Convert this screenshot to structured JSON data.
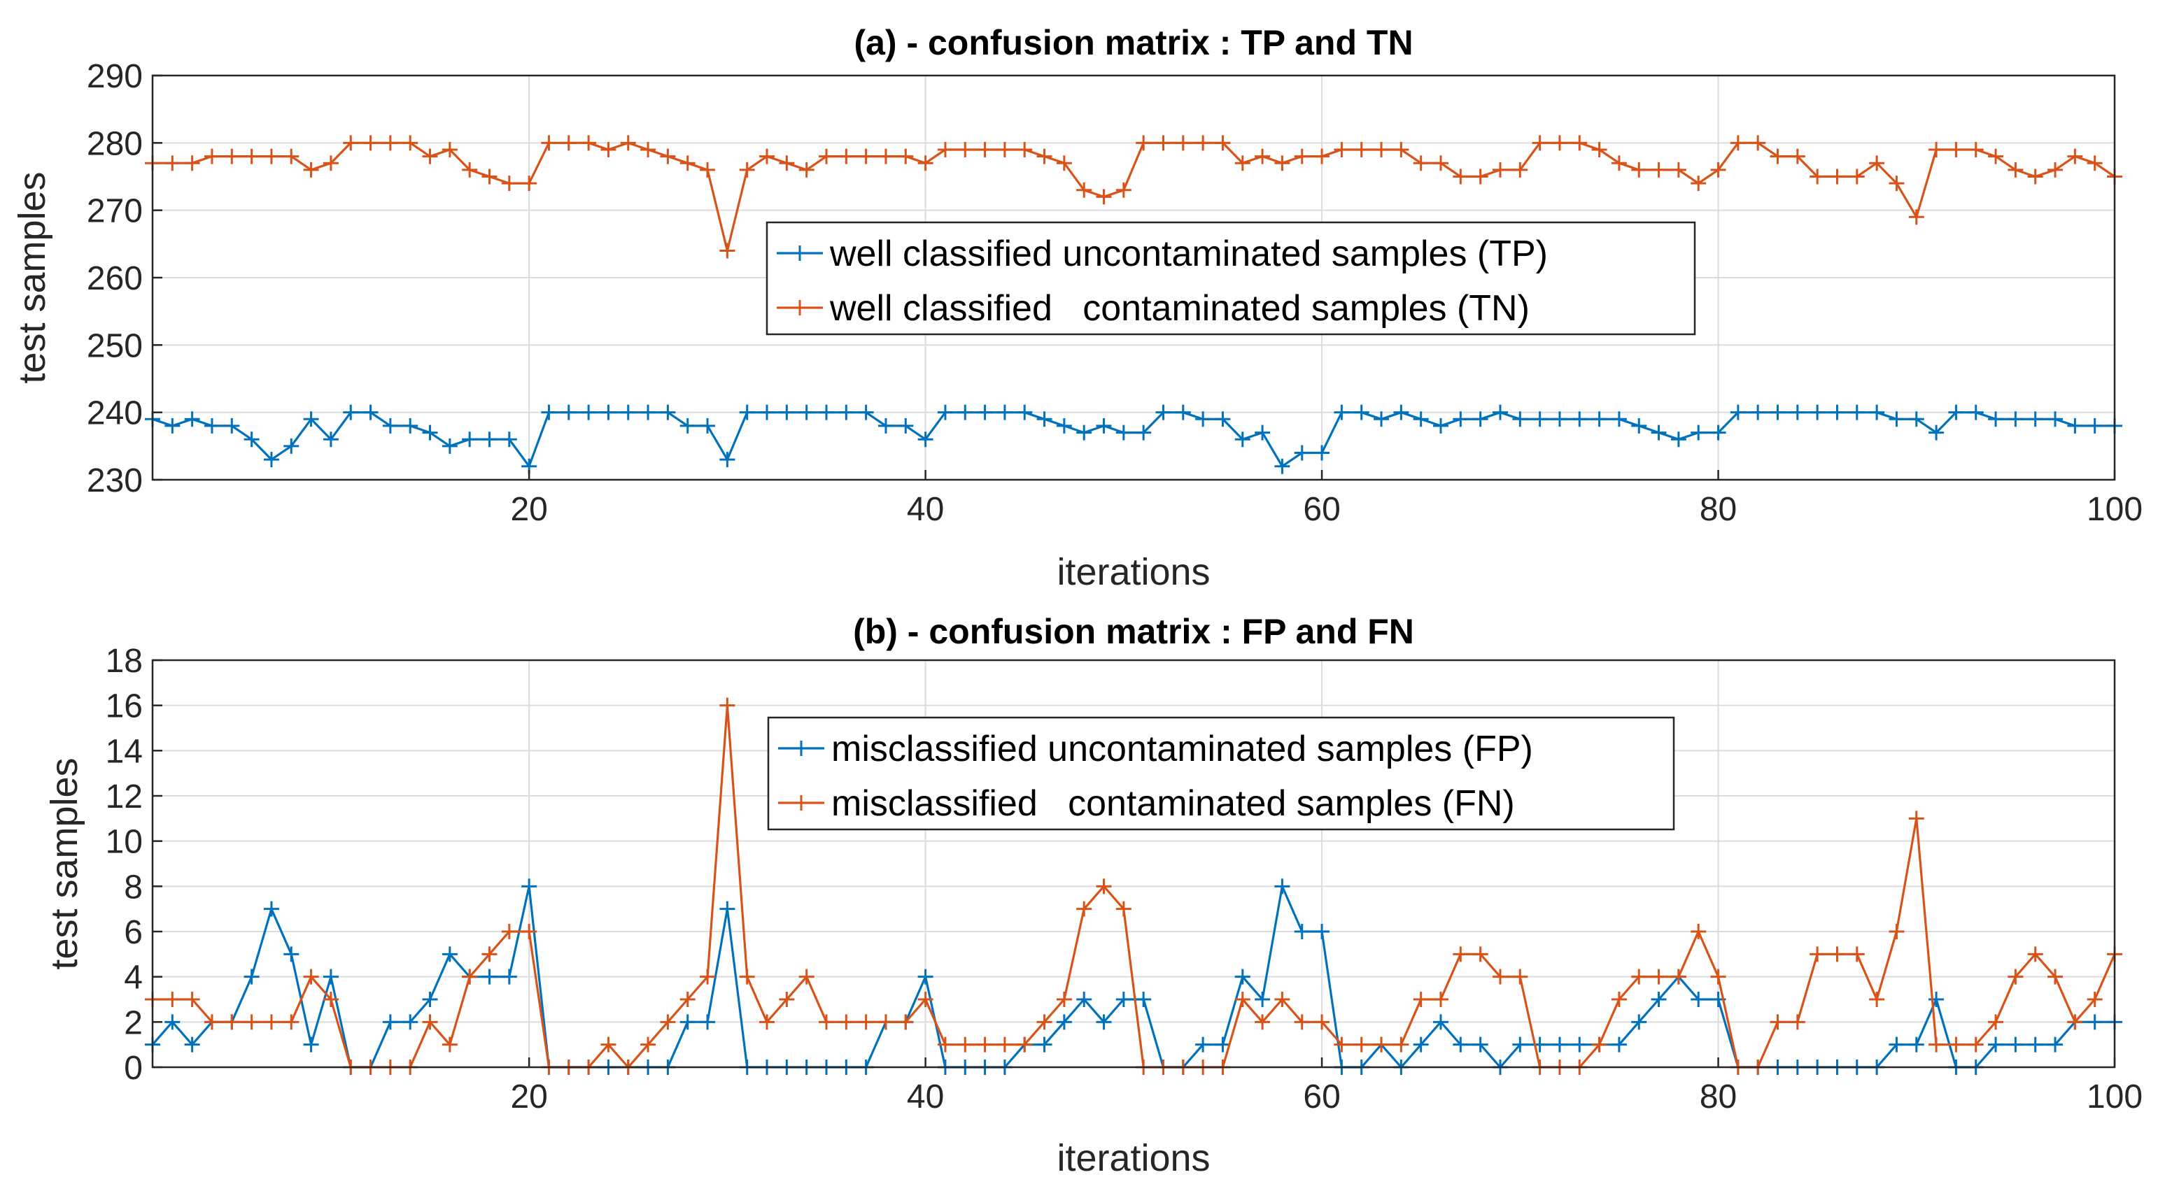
{
  "chart_data": [
    {
      "id": "a",
      "type": "line",
      "title": "(a) - confusion matrix : TP and TN",
      "xlabel": "iterations",
      "ylabel": "test samples",
      "xlim": [
        1,
        100
      ],
      "ylim": [
        230,
        290
      ],
      "xticks": [
        20,
        40,
        60,
        80,
        100
      ],
      "yticks": [
        230,
        240,
        250,
        260,
        270,
        280,
        290
      ],
      "grid": true,
      "legend_position": "center",
      "x": [
        1,
        2,
        3,
        4,
        5,
        6,
        7,
        8,
        9,
        10,
        11,
        12,
        13,
        14,
        15,
        16,
        17,
        18,
        19,
        20,
        21,
        22,
        23,
        24,
        25,
        26,
        27,
        28,
        29,
        30,
        31,
        32,
        33,
        34,
        35,
        36,
        37,
        38,
        39,
        40,
        41,
        42,
        43,
        44,
        45,
        46,
        47,
        48,
        49,
        50,
        51,
        52,
        53,
        54,
        55,
        56,
        57,
        58,
        59,
        60,
        61,
        62,
        63,
        64,
        65,
        66,
        67,
        68,
        69,
        70,
        71,
        72,
        73,
        74,
        75,
        76,
        77,
        78,
        79,
        80,
        81,
        82,
        83,
        84,
        85,
        86,
        87,
        88,
        89,
        90,
        91,
        92,
        93,
        94,
        95,
        96,
        97,
        98,
        99,
        100
      ],
      "series": [
        {
          "name": "well classified uncontaminated samples (TP)",
          "color": "#0072BD",
          "values": [
            239,
            238,
            239,
            238,
            238,
            236,
            233,
            235,
            239,
            236,
            240,
            240,
            238,
            238,
            237,
            235,
            236,
            236,
            236,
            232,
            240,
            240,
            240,
            240,
            240,
            240,
            240,
            238,
            238,
            233,
            240,
            240,
            240,
            240,
            240,
            240,
            240,
            238,
            238,
            236,
            240,
            240,
            240,
            240,
            240,
            239,
            238,
            237,
            238,
            237,
            237,
            240,
            240,
            239,
            239,
            236,
            237,
            232,
            234,
            234,
            240,
            240,
            239,
            240,
            239,
            238,
            239,
            239,
            240,
            239,
            239,
            239,
            239,
            239,
            239,
            238,
            237,
            236,
            237,
            237,
            240,
            240,
            240,
            240,
            240,
            240,
            240,
            240,
            239,
            239,
            237,
            240,
            240,
            239,
            239,
            239,
            239,
            238,
            238,
            238
          ]
        },
        {
          "name": "well classified   contaminated samples (TN)",
          "color": "#D95319",
          "values": [
            277,
            277,
            277,
            278,
            278,
            278,
            278,
            278,
            276,
            277,
            280,
            280,
            280,
            280,
            278,
            279,
            276,
            275,
            274,
            274,
            280,
            280,
            280,
            279,
            280,
            279,
            278,
            277,
            276,
            264,
            276,
            278,
            277,
            276,
            278,
            278,
            278,
            278,
            278,
            277,
            279,
            279,
            279,
            279,
            279,
            278,
            277,
            273,
            272,
            273,
            280,
            280,
            280,
            280,
            280,
            277,
            278,
            277,
            278,
            278,
            279,
            279,
            279,
            279,
            277,
            277,
            275,
            275,
            276,
            276,
            280,
            280,
            280,
            279,
            277,
            276,
            276,
            276,
            274,
            276,
            280,
            280,
            278,
            278,
            275,
            275,
            275,
            277,
            274,
            269,
            279,
            279,
            279,
            278,
            276,
            275,
            276,
            278,
            277,
            275
          ]
        }
      ]
    },
    {
      "id": "b",
      "type": "line",
      "title": "(b) - confusion matrix : FP and FN",
      "xlabel": "iterations",
      "ylabel": "test samples",
      "xlim": [
        1,
        100
      ],
      "ylim": [
        0,
        18
      ],
      "xticks": [
        20,
        40,
        60,
        80,
        100
      ],
      "yticks": [
        0,
        2,
        4,
        6,
        8,
        10,
        12,
        14,
        16,
        18
      ],
      "grid": true,
      "legend_position": "top-center",
      "x": [
        1,
        2,
        3,
        4,
        5,
        6,
        7,
        8,
        9,
        10,
        11,
        12,
        13,
        14,
        15,
        16,
        17,
        18,
        19,
        20,
        21,
        22,
        23,
        24,
        25,
        26,
        27,
        28,
        29,
        30,
        31,
        32,
        33,
        34,
        35,
        36,
        37,
        38,
        39,
        40,
        41,
        42,
        43,
        44,
        45,
        46,
        47,
        48,
        49,
        50,
        51,
        52,
        53,
        54,
        55,
        56,
        57,
        58,
        59,
        60,
        61,
        62,
        63,
        64,
        65,
        66,
        67,
        68,
        69,
        70,
        71,
        72,
        73,
        74,
        75,
        76,
        77,
        78,
        79,
        80,
        81,
        82,
        83,
        84,
        85,
        86,
        87,
        88,
        89,
        90,
        91,
        92,
        93,
        94,
        95,
        96,
        97,
        98,
        99,
        100
      ],
      "series": [
        {
          "name": "misclassified uncontaminated samples (FP)",
          "color": "#0072BD",
          "values": [
            1,
            2,
            1,
            2,
            2,
            4,
            7,
            5,
            1,
            4,
            0,
            0,
            2,
            2,
            3,
            5,
            4,
            4,
            4,
            8,
            0,
            0,
            0,
            0,
            0,
            0,
            0,
            2,
            2,
            7,
            0,
            0,
            0,
            0,
            0,
            0,
            0,
            2,
            2,
            4,
            0,
            0,
            0,
            0,
            1,
            1,
            2,
            3,
            2,
            3,
            3,
            0,
            0,
            1,
            1,
            4,
            3,
            8,
            6,
            6,
            0,
            0,
            1,
            0,
            1,
            2,
            1,
            1,
            0,
            1,
            1,
            1,
            1,
            1,
            1,
            2,
            3,
            4,
            3,
            3,
            0,
            0,
            0,
            0,
            0,
            0,
            0,
            0,
            1,
            1,
            3,
            0,
            0,
            1,
            1,
            1,
            1,
            2,
            2,
            2
          ]
        },
        {
          "name": "misclassified   contaminated samples (FN)",
          "color": "#D95319",
          "values": [
            3,
            3,
            3,
            2,
            2,
            2,
            2,
            2,
            4,
            3,
            0,
            0,
            0,
            0,
            2,
            1,
            4,
            5,
            6,
            6,
            0,
            0,
            0,
            1,
            0,
            1,
            2,
            3,
            4,
            16,
            4,
            2,
            3,
            4,
            2,
            2,
            2,
            2,
            2,
            3,
            1,
            1,
            1,
            1,
            1,
            2,
            3,
            7,
            8,
            7,
            0,
            0,
            0,
            0,
            0,
            3,
            2,
            3,
            2,
            2,
            1,
            1,
            1,
            1,
            3,
            3,
            5,
            5,
            4,
            4,
            0,
            0,
            0,
            1,
            3,
            4,
            4,
            4,
            6,
            4,
            0,
            0,
            2,
            2,
            5,
            5,
            5,
            3,
            6,
            11,
            1,
            1,
            1,
            2,
            4,
            5,
            4,
            2,
            3,
            5
          ]
        }
      ]
    }
  ]
}
